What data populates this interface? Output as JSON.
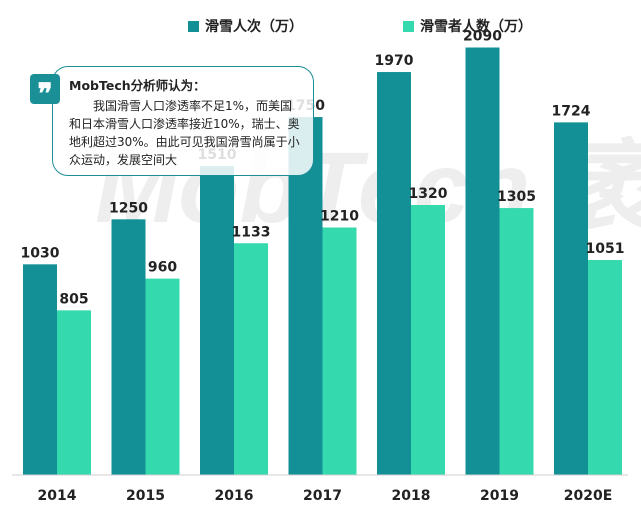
{
  "colors": {
    "series1": "#138f96",
    "series2": "#34d9ad",
    "watermark": "#eeeeee",
    "callout_border": "#1a8f96"
  },
  "watermark": "MobTech 袤博",
  "callout": {
    "icon": "quote-icon",
    "title": "MobTech分析师认为：",
    "body": "我国滑雪人口渗透率不足1%，而美国和日本滑雪人口渗透率接近10%，瑞士、奥地利超过30%。由此可见我国滑雪尚属于小众运动，发展空间大"
  },
  "chart_data": {
    "type": "bar",
    "categories": [
      "2014",
      "2015",
      "2016",
      "2017",
      "2018",
      "2019",
      "2020E"
    ],
    "series": [
      {
        "name": "滑雪人次（万）",
        "values": [
          1030,
          1250,
          1510,
          1750,
          1970,
          2090,
          1724
        ]
      },
      {
        "name": "滑雪者人数（万）",
        "values": [
          805,
          960,
          1133,
          1210,
          1320,
          1305,
          1051
        ]
      }
    ],
    "ylim": [
      0,
      2200
    ],
    "legend": "top",
    "grid": false
  }
}
